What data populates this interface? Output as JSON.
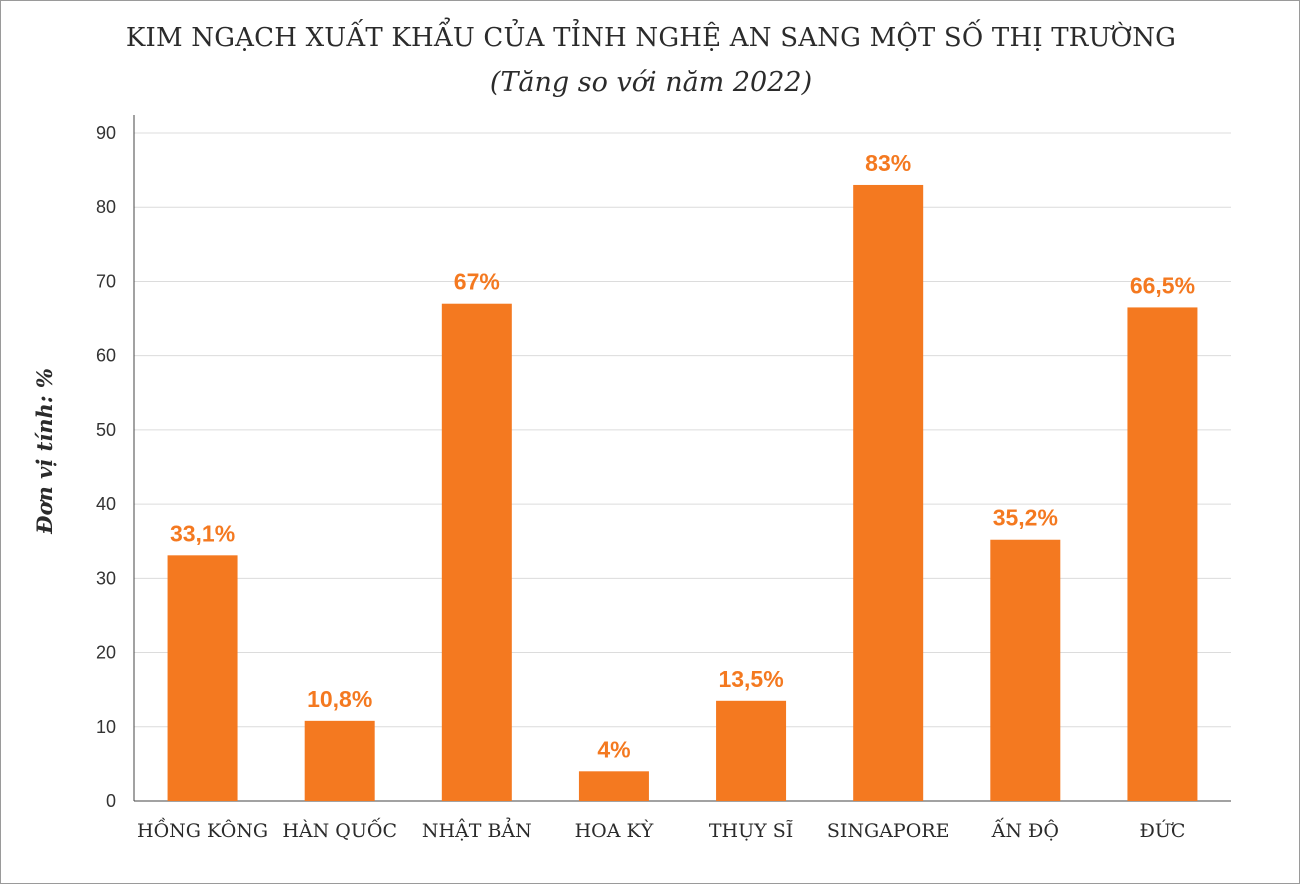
{
  "colors": {
    "bar": "#f47920",
    "data_label": "#f47920",
    "grid": "#dcdcdc",
    "axis": "#444444",
    "text": "#2b2b2b",
    "border": "#9a9a9a"
  },
  "chart_data": {
    "type": "bar",
    "title": "KIM NGẠCH XUẤT KHẨU CỦA TỈNH NGHỆ AN SANG MỘT SỐ THỊ TRƯỜNG",
    "subtitle": "(Tăng so với năm 2022)",
    "xlabel": "",
    "ylabel": "Đơn vị tính: %",
    "ylim": [
      0,
      90
    ],
    "yticks": [
      "0",
      "10",
      "20",
      "30",
      "40",
      "50",
      "60",
      "70",
      "80",
      "90"
    ],
    "grid": true,
    "legend": "none",
    "categories": [
      "HỒNG KÔNG",
      "HÀN QUỐC",
      "NHẬT BẢN",
      "HOA KỲ",
      "THỤY SĨ",
      "SINGAPORE",
      "ẤN ĐỘ",
      "ĐỨC"
    ],
    "values": [
      33.1,
      10.8,
      67,
      4,
      13.5,
      83,
      35.2,
      66.5
    ],
    "data_labels": [
      "33,1%",
      "10,8%",
      "67%",
      "4%",
      "13,5%",
      "83%",
      "35,2%",
      "66,5%"
    ]
  }
}
